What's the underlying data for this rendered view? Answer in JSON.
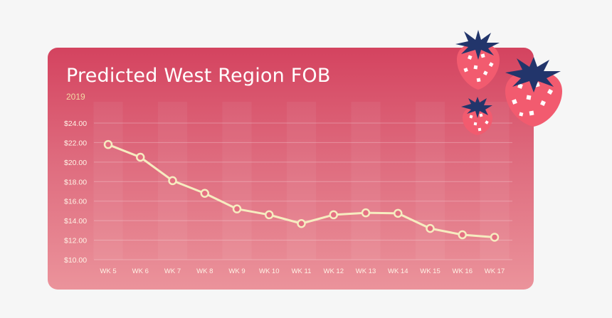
{
  "colors": {
    "background": "#f6f6f6",
    "card_top": "#d4435f",
    "card_bottom": "#eb939b",
    "line": "#f6ecc0",
    "subtitle": "#f3d9a4",
    "axis_text": "#fff3e6",
    "berry_body": "#f25b6f",
    "berry_leaf": "#22356b"
  },
  "icons": [
    "strawberry-icon"
  ],
  "chart_data": {
    "type": "line",
    "title": "Predicted West Region FOB",
    "subtitle": "2019",
    "xlabel": "",
    "ylabel": "",
    "categories": [
      "WK 5",
      "WK 6",
      "WK 7",
      "WK 8",
      "WK 9",
      "WK 10",
      "WK 11",
      "WK 12",
      "WK 13",
      "WK 14",
      "WK 15",
      "WK 16",
      "WK 17"
    ],
    "values": [
      21.8,
      20.5,
      18.1,
      16.8,
      15.2,
      14.6,
      13.7,
      14.6,
      14.8,
      14.75,
      13.2,
      12.55,
      12.3
    ],
    "ylim": [
      10,
      24
    ],
    "yticks": [
      "$10.00",
      "$12.00",
      "$14.00",
      "$16.00",
      "$18.00",
      "$20.00",
      "$22.00",
      "$24.00"
    ],
    "grid": true,
    "legend": "none"
  }
}
